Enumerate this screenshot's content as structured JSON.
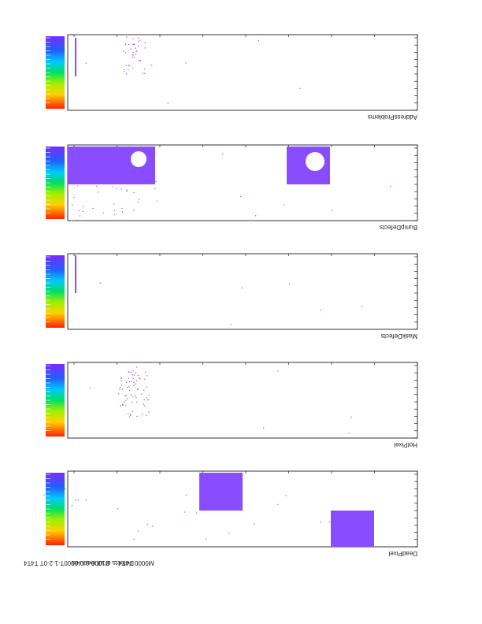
{
  "panels": [
    {
      "title": "AddressProblems"
    },
    {
      "title": "BumpDefects"
    },
    {
      "title": "MaskDefects"
    },
    {
      "title": "HotPixel"
    },
    {
      "title": "DeadPixel"
    }
  ],
  "footer": {
    "left": "M0000 T4T4 ... B1000-0-0-0000T-1-2-0T T4T4",
    "right": "Defects of all modules"
  }
}
